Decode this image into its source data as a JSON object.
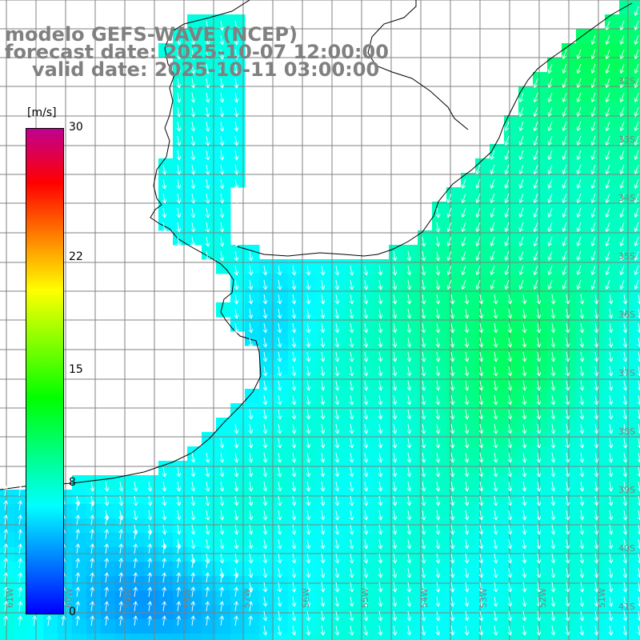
{
  "header": {
    "line1": "modelo GEFS-WAVE (NCEP)",
    "line2": "forecast date: 2025-10-07 12:00:00",
    "line3": "valid date: 2025-10-11 03:00:00"
  },
  "colorbar": {
    "units": "[m/s]",
    "ticks": [
      {
        "value": 30,
        "label": "30"
      },
      {
        "value": 22,
        "label": "22"
      },
      {
        "value": 15,
        "label": "15"
      },
      {
        "value": 8,
        "label": "8"
      },
      {
        "value": 0,
        "label": "0"
      }
    ],
    "colors": [
      "#0000ff",
      "#0080ff",
      "#00ffff",
      "#00ff80",
      "#00ff00",
      "#80ff00",
      "#ffff00",
      "#ff8000",
      "#ff0000",
      "#c00090"
    ]
  },
  "map": {
    "lon_labels": [
      "61W",
      "60W",
      "59W",
      "58W",
      "57W",
      "56W",
      "55W",
      "54W",
      "53W",
      "52W",
      "51W"
    ],
    "lat_labels": [
      "32S",
      "33S",
      "34S",
      "35S",
      "36S",
      "37S",
      "38S",
      "39S",
      "40S",
      "41S"
    ],
    "grid_color": "#808080",
    "coast_color": "#000000",
    "arrow_color": "#ffffff"
  }
}
